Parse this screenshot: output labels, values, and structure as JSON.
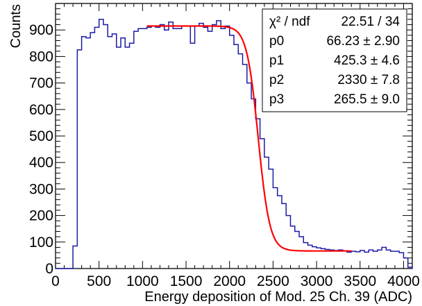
{
  "chart_data": {
    "type": "line",
    "title": "",
    "xlabel": "Energy deposition of Mod. 25 Ch. 39 (ADC)",
    "ylabel": "Counts",
    "xlim": [
      0,
      4100
    ],
    "ylim": [
      0,
      1000
    ],
    "x_ticks": [
      0,
      500,
      1000,
      1500,
      2000,
      2500,
      3000,
      3500,
      4000
    ],
    "y_ticks": [
      0,
      100,
      200,
      300,
      400,
      500,
      600,
      700,
      800,
      900
    ],
    "histogram": {
      "color": "#1a1aa6",
      "bin_edges_start": 0,
      "bin_width": 50,
      "counts": [
        0,
        0,
        0,
        0,
        85,
        825,
        875,
        870,
        890,
        910,
        940,
        920,
        875,
        885,
        835,
        870,
        835,
        850,
        895,
        905,
        905,
        910,
        915,
        910,
        920,
        900,
        930,
        905,
        905,
        915,
        915,
        850,
        915,
        925,
        910,
        895,
        920,
        935,
        905,
        915,
        880,
        845,
        810,
        770,
        700,
        640,
        565,
        490,
        420,
        375,
        305,
        275,
        245,
        200,
        160,
        140,
        120,
        98,
        88,
        82,
        78,
        75,
        72,
        70,
        68,
        70,
        67,
        62,
        65,
        63,
        68,
        62,
        70,
        65,
        70,
        80,
        70,
        65,
        65,
        60,
        40,
        5
      ]
    },
    "fit": {
      "color": "#ff0000",
      "x_range": [
        1050,
        3400
      ],
      "function": "p0 + p1 / (1 + exp((x - p2) / p3 * 4))"
    },
    "stats": [
      {
        "label": "χ² / ndf",
        "value": "22.51 / 34"
      },
      {
        "label": "p0",
        "value": "66.23 ± 2.90"
      },
      {
        "label": "p1",
        "value": "425.3 ± 4.6"
      },
      {
        "label": "p2",
        "value": "2330 ± 7.8"
      },
      {
        "label": "p3",
        "value": "265.5 ± 9.0"
      }
    ],
    "legend_position": "top-right"
  }
}
